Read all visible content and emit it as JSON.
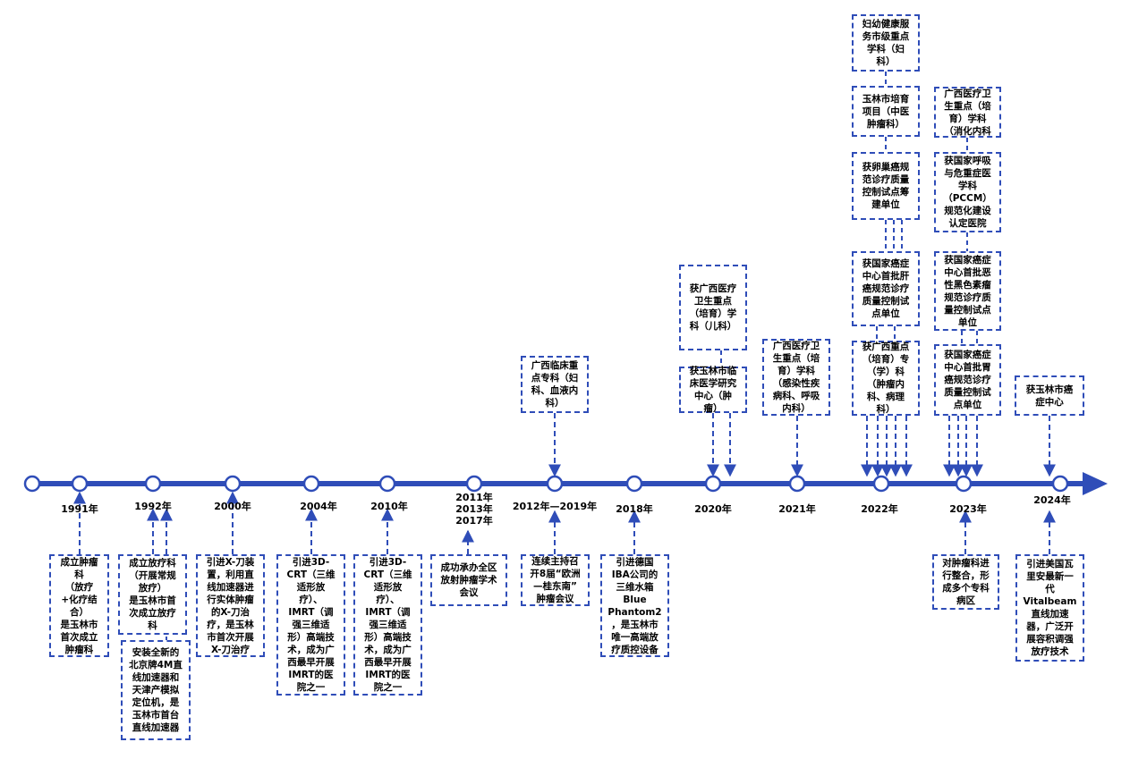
{
  "colors": {
    "axis": "#2f4db8",
    "node_fill": "#ffffff",
    "box_border": "#2f4db8"
  },
  "timeline": {
    "nodes": [
      {
        "year": ""
      },
      {
        "year": "1991年"
      },
      {
        "year": "1992年"
      },
      {
        "year": "2000年"
      },
      {
        "year": "2004年"
      },
      {
        "year": "2010年"
      },
      {
        "year": "2011年\n2013年\n2017年"
      },
      {
        "year": "2012年—2019年"
      },
      {
        "year": "2018年"
      },
      {
        "year": "2020年"
      },
      {
        "year": "2021年"
      },
      {
        "year": "2022年"
      },
      {
        "year": "2023年"
      },
      {
        "year": "2024年"
      }
    ]
  },
  "events": {
    "e1991": "成立肿瘤\n科\n（放疗\n+化疗结\n合）\n是玉林市\n首次成立\n肿瘤科",
    "e1992a": "成立放疗科\n（开展常规\n放疗）\n是玉林市首\n次成立放疗\n科",
    "e1992b": "安装全新的\n北京牌4M直\n线加速器和\n天津产模拟\n定位机，是\n玉林市首台\n直线加速器",
    "e2000": "引进X-刀装\n置，利用直\n线加速器进\n行实体肿瘤\n的X-刀治\n疗，是玉林\n市首次开展\nX-刀治疗",
    "e2004": "引进3D-\nCRT（三维\n适形放\n疗）、\nIMRT（调\n强三维适\n形）高端技\n术，成为广\n西最早开展\nIMRT的医\n院之一",
    "e2010": "引进3D-\nCRT（三维\n适形放\n疗）、\nIMRT（调\n强三维适\n形）高端技\n术，成为广\n西最早开展\nIMRT的医\n院之一",
    "e2011": "成功承办全区\n放射肿瘤学术\n会议",
    "e2012b": "连续主持召\n开8届“欧洲\n—桂东南”\n肿瘤会议",
    "e2012a": "广西临床重\n点专科（妇\n科、血液内\n科）",
    "e2018": "引进德国\nIBA公司的\n三维水箱\nBlue\nPhantom2\n，是玉林市\n唯一高端放\n疗质控设备",
    "e2020a": "获广西医疗\n卫生重点\n（培育）学\n科（儿科）",
    "e2020b": "获玉林市临\n床医学研究\n中心（肿\n瘤）",
    "e2021": "广西医疗卫\n生重点（培\n育）学科\n（感染性疾\n病科、呼吸\n内科）",
    "e2022a": "妇幼健康服\n务市级重点\n学科（妇\n科）",
    "e2022b": "玉林市培育\n项目（中医\n肿瘤科）",
    "e2022c": "获卵巢癌规\n范诊疗质量\n控制试点筹\n建单位",
    "e2022d": "获国家癌症\n中心首批肝\n癌规范诊疗\n质量控制试\n点单位",
    "e2022e": "获广西重点\n（培育）专\n（学）科\n（肿瘤内\n科、病理\n科）",
    "e2023a": "广西医疗卫\n生重点（培\n育）学科\n（消化内科",
    "e2023b": "获国家呼吸\n与危重症医\n学科\n（PCCM）\n规范化建设\n认定医院",
    "e2023c": "获国家癌症\n中心首批恶\n性黑色素瘤\n规范诊疗质\n量控制试点\n单位",
    "e2023d": "获国家癌症\n中心首批胃\n癌规范诊疗\n质量控制试\n点单位",
    "e2023e": "对肿瘤科进\n行整合，形\n成多个专科\n病区",
    "e2024a": "获玉林市癌\n症中心",
    "e2024b": "引进美国瓦\n里安最新一\n代\nVitalbeam\n直线加速\n器，广泛开\n展容积调强\n放疗技术"
  }
}
